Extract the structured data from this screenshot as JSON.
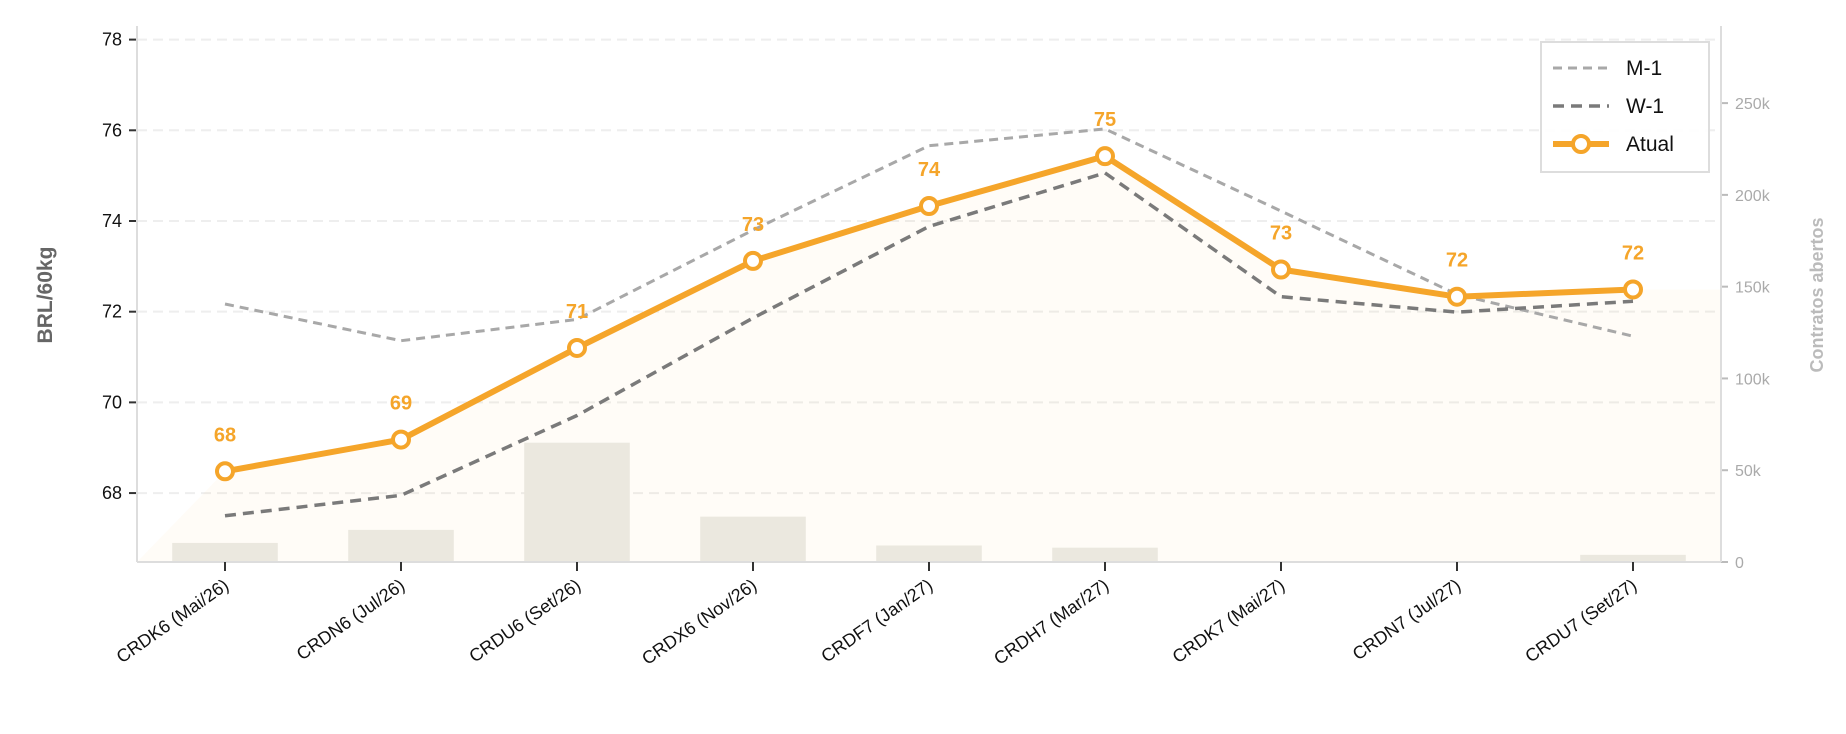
{
  "chart_data": {
    "type": "line",
    "ylabel": "BRL/60kg",
    "y2label": "Contratos abertos",
    "categories": [
      "CRDK6 (Mai/26)",
      "CRDN6 (Jul/26)",
      "CRDU6 (Set/26)",
      "CRDX6 (Nov/26)",
      "CRDF7 (Jan/27)",
      "CRDH7 (Mar/27)",
      "CRDK7 (Mai/27)",
      "CRDN7 (Jul/27)",
      "CRDU7 (Set/27)"
    ],
    "ylim": [
      66.48,
      78.3
    ],
    "yticks": [
      68,
      70,
      72,
      74,
      76,
      78
    ],
    "y2lim": [
      0,
      292000
    ],
    "y2ticks": [
      {
        "value": 0,
        "label": "0"
      },
      {
        "value": 50000,
        "label": "50k"
      },
      {
        "value": 100000,
        "label": "100k"
      },
      {
        "value": 150000,
        "label": "150k"
      },
      {
        "value": 200000,
        "label": "200k"
      },
      {
        "value": 250000,
        "label": "250k"
      }
    ],
    "grid": true,
    "legend": "upper right",
    "series": [
      {
        "name": "M-1",
        "color": "#a8a8a8",
        "dash": "9,6",
        "width": 3,
        "values": [
          72.17,
          71.36,
          71.83,
          73.8,
          75.66,
          76.03,
          74.22,
          72.38,
          71.46
        ]
      },
      {
        "name": "W-1",
        "color": "#7a7a7a",
        "dash": "11,7",
        "width": 3.5,
        "values": [
          67.5,
          67.95,
          69.71,
          71.86,
          73.88,
          75.06,
          72.33,
          71.99,
          72.23
        ]
      },
      {
        "name": "Atual",
        "color": "#f5a52a",
        "width": 6,
        "markers": true,
        "values": [
          68.48,
          69.18,
          71.2,
          73.12,
          74.33,
          75.43,
          72.93,
          72.33,
          72.49
        ],
        "value_labels": [
          "68",
          "69",
          "71",
          "73",
          "74",
          "75",
          "73",
          "72",
          "72"
        ]
      },
      {
        "name": "Contratos abertos",
        "type": "bar",
        "axis": "y2",
        "color": "#ebebe7",
        "values": [
          10400,
          17500,
          65000,
          24700,
          9000,
          7800,
          0,
          0,
          3900
        ]
      }
    ]
  }
}
